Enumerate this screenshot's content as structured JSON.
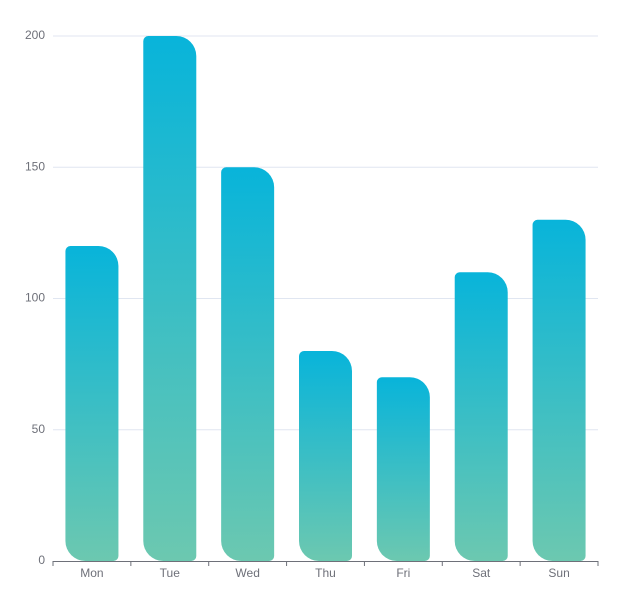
{
  "chart_data": {
    "type": "bar",
    "categories": [
      "Mon",
      "Tue",
      "Wed",
      "Thu",
      "Fri",
      "Sat",
      "Sun"
    ],
    "values": [
      120,
      200,
      150,
      80,
      70,
      110,
      130
    ],
    "gradient": [
      "#08b4da",
      "#6cc8b0"
    ],
    "ylim": [
      0,
      200
    ],
    "yticks": [
      0,
      50,
      100,
      150,
      200
    ],
    "grid": true
  }
}
